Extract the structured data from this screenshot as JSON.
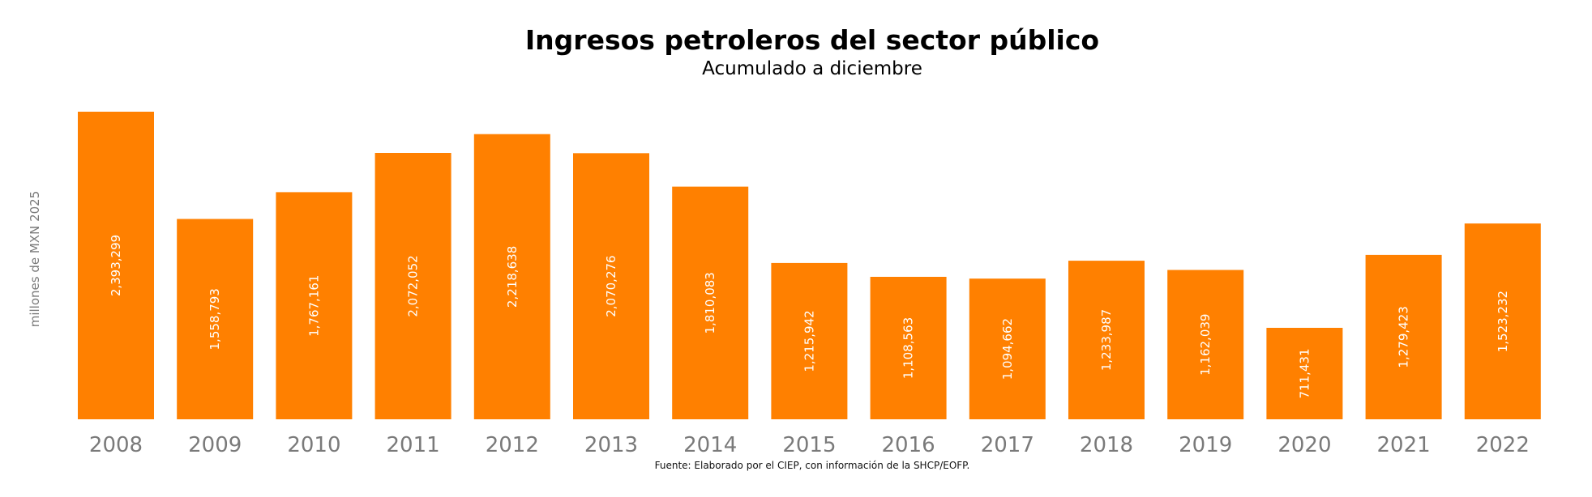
{
  "chart_data": {
    "type": "bar",
    "title": "Ingresos petroleros del sector público",
    "subtitle": "Acumulado a diciembre",
    "ylabel": "millones de MXN 2025",
    "xlabel": "",
    "source": "Fuente: Elaborado por el CIEP, con información de la SHCP/EOFP.",
    "categories": [
      "2008",
      "2009",
      "2010",
      "2011",
      "2012",
      "2013",
      "2014",
      "2015",
      "2016",
      "2017",
      "2018",
      "2019",
      "2020",
      "2021",
      "2022"
    ],
    "values": [
      2393299,
      1558793,
      1767161,
      2072052,
      2218638,
      2070276,
      1810083,
      1215942,
      1108563,
      1094662,
      1233987,
      1162039,
      711431,
      1279423,
      1523232
    ],
    "value_labels": [
      "2,393,299",
      "1,558,793",
      "1,767,161",
      "2,072,052",
      "2,218,638",
      "2,070,276",
      "1,810,083",
      "1,215,942",
      "1,108,563",
      "1,094,662",
      "1,233,987",
      "1,162,039",
      "711,431",
      "1,279,423",
      "1,523,232"
    ],
    "ylim": [
      0,
      2393299
    ],
    "grid": false,
    "legend": "none",
    "colors": {
      "bar": "#FF8000",
      "value_label": "#ffffff",
      "tick_label": "#7a7a7a"
    }
  }
}
